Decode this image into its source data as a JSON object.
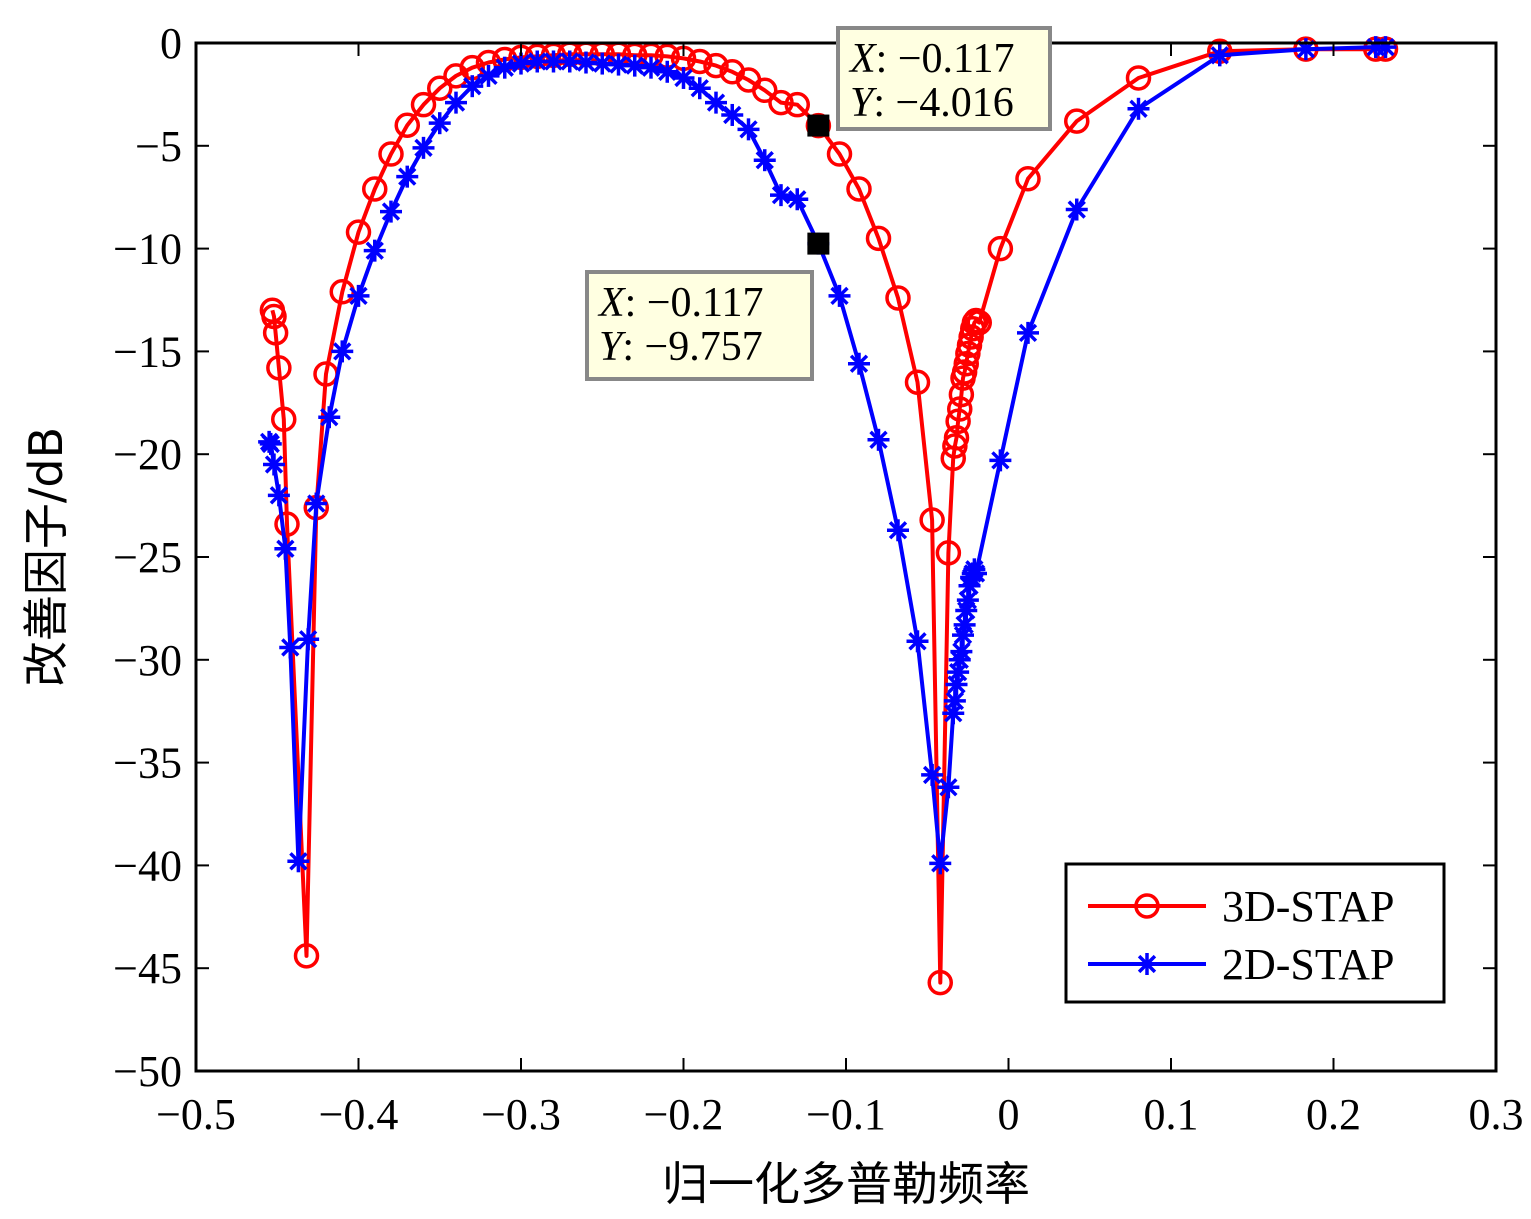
{
  "chart_data": {
    "type": "line",
    "title": "",
    "xlabel": "归一化多普勒频率",
    "ylabel": "改善因子/dB",
    "xlim": [
      -0.5,
      0.3
    ],
    "ylim": [
      -50,
      0
    ],
    "xticks": [
      -0.5,
      -0.4,
      -0.3,
      -0.2,
      -0.1,
      0,
      0.1,
      0.2,
      0.3
    ],
    "xtick_labels": [
      "−0.5",
      "−0.4",
      "−0.3",
      "−0.2",
      "−0.1",
      "0",
      "0.1",
      "0.2",
      "0.3"
    ],
    "yticks": [
      0,
      -5,
      -10,
      -15,
      -20,
      -25,
      -30,
      -35,
      -40,
      -45,
      -50
    ],
    "ytick_labels": [
      "0",
      "−5",
      "−10",
      "−15",
      "−20",
      "−25",
      "−30",
      "−35",
      "−40",
      "−45",
      "−50"
    ],
    "grid": false,
    "legend_position": "bottom-right",
    "series": [
      {
        "name": "3D-STAP",
        "color": "#ff0000",
        "marker": "circle",
        "x": [
          -0.453,
          -0.452,
          -0.451,
          -0.449,
          -0.446,
          -0.444,
          -0.432,
          -0.426,
          -0.42,
          -0.41,
          -0.4,
          -0.39,
          -0.38,
          -0.37,
          -0.36,
          -0.35,
          -0.34,
          -0.33,
          -0.32,
          -0.31,
          -0.3,
          -0.29,
          -0.28,
          -0.27,
          -0.26,
          -0.25,
          -0.24,
          -0.23,
          -0.22,
          -0.21,
          -0.2,
          -0.19,
          -0.18,
          -0.17,
          -0.16,
          -0.15,
          -0.14,
          -0.13,
          -0.117,
          -0.104,
          -0.092,
          -0.08,
          -0.068,
          -0.056,
          -0.047,
          -0.042,
          -0.037,
          -0.034,
          -0.033,
          -0.032,
          -0.031,
          -0.03,
          -0.029,
          -0.028,
          -0.027,
          -0.026,
          -0.025,
          -0.024,
          -0.023,
          -0.022,
          -0.021,
          -0.02,
          -0.018,
          -0.005,
          0.012,
          0.042,
          0.08,
          0.13,
          0.183,
          0.226,
          0.232
        ],
        "y": [
          -13.0,
          -13.3,
          -14.1,
          -15.8,
          -18.3,
          -23.4,
          -44.4,
          -22.6,
          -16.1,
          -12.1,
          -9.2,
          -7.1,
          -5.4,
          -4.0,
          -3.0,
          -2.2,
          -1.6,
          -1.2,
          -0.95,
          -0.8,
          -0.7,
          -0.65,
          -0.6,
          -0.55,
          -0.55,
          -0.55,
          -0.55,
          -0.6,
          -0.6,
          -0.65,
          -0.75,
          -0.9,
          -1.1,
          -1.4,
          -1.8,
          -2.3,
          -2.9,
          -3.0,
          -4.016,
          -5.4,
          -7.1,
          -9.5,
          -12.4,
          -16.5,
          -23.2,
          -45.7,
          -24.8,
          -20.2,
          -19.6,
          -19.2,
          -18.4,
          -17.8,
          -17.1,
          -16.3,
          -16.0,
          -15.6,
          -15.1,
          -14.7,
          -14.3,
          -13.9,
          -13.6,
          -13.5,
          -13.6,
          -10.0,
          -6.6,
          -3.8,
          -1.7,
          -0.4,
          -0.3,
          -0.3,
          -0.3
        ]
      },
      {
        "name": "2D-STAP",
        "color": "#0000ff",
        "marker": "star",
        "x": [
          -0.455,
          -0.454,
          -0.452,
          -0.449,
          -0.445,
          -0.442,
          -0.437,
          -0.431,
          -0.426,
          -0.418,
          -0.41,
          -0.4,
          -0.39,
          -0.38,
          -0.37,
          -0.36,
          -0.35,
          -0.34,
          -0.33,
          -0.32,
          -0.31,
          -0.3,
          -0.29,
          -0.28,
          -0.27,
          -0.26,
          -0.25,
          -0.24,
          -0.23,
          -0.22,
          -0.21,
          -0.2,
          -0.19,
          -0.18,
          -0.17,
          -0.16,
          -0.15,
          -0.14,
          -0.13,
          -0.117,
          -0.104,
          -0.092,
          -0.08,
          -0.068,
          -0.056,
          -0.047,
          -0.042,
          -0.037,
          -0.034,
          -0.033,
          -0.032,
          -0.031,
          -0.03,
          -0.029,
          -0.028,
          -0.027,
          -0.026,
          -0.025,
          -0.024,
          -0.023,
          -0.022,
          -0.021,
          -0.02,
          -0.005,
          0.012,
          0.042,
          0.08,
          0.13,
          0.183,
          0.226,
          0.232
        ],
        "y": [
          -19.4,
          -19.5,
          -20.5,
          -22.0,
          -24.6,
          -29.4,
          -39.8,
          -29.0,
          -22.4,
          -18.2,
          -15.0,
          -12.3,
          -10.1,
          -8.2,
          -6.5,
          -5.1,
          -3.9,
          -2.9,
          -2.1,
          -1.6,
          -1.2,
          -1.0,
          -0.9,
          -0.9,
          -0.9,
          -0.95,
          -1.0,
          -1.05,
          -1.1,
          -1.2,
          -1.4,
          -1.7,
          -2.2,
          -2.9,
          -3.5,
          -4.2,
          -5.7,
          -7.4,
          -7.6,
          -9.757,
          -12.3,
          -15.6,
          -19.3,
          -23.7,
          -29.1,
          -35.6,
          -39.9,
          -36.2,
          -32.6,
          -32.0,
          -31.2,
          -30.6,
          -30.0,
          -29.6,
          -28.8,
          -28.3,
          -27.6,
          -27.1,
          -26.4,
          -26.0,
          -25.8,
          -25.6,
          -25.8,
          -20.3,
          -14.1,
          -8.1,
          -3.2,
          -0.6,
          -0.3,
          -0.2,
          -0.2
        ]
      }
    ],
    "datatips": [
      {
        "x_label": "X",
        "x_value": ": −0.117",
        "y_label": "Y",
        "y_value": ": −4.016",
        "point": [
          -0.117,
          -4.016
        ]
      },
      {
        "x_label": "X",
        "x_value": ": −0.117",
        "y_label": "Y",
        "y_value": ": −9.757",
        "point": [
          -0.117,
          -9.757
        ]
      }
    ]
  }
}
